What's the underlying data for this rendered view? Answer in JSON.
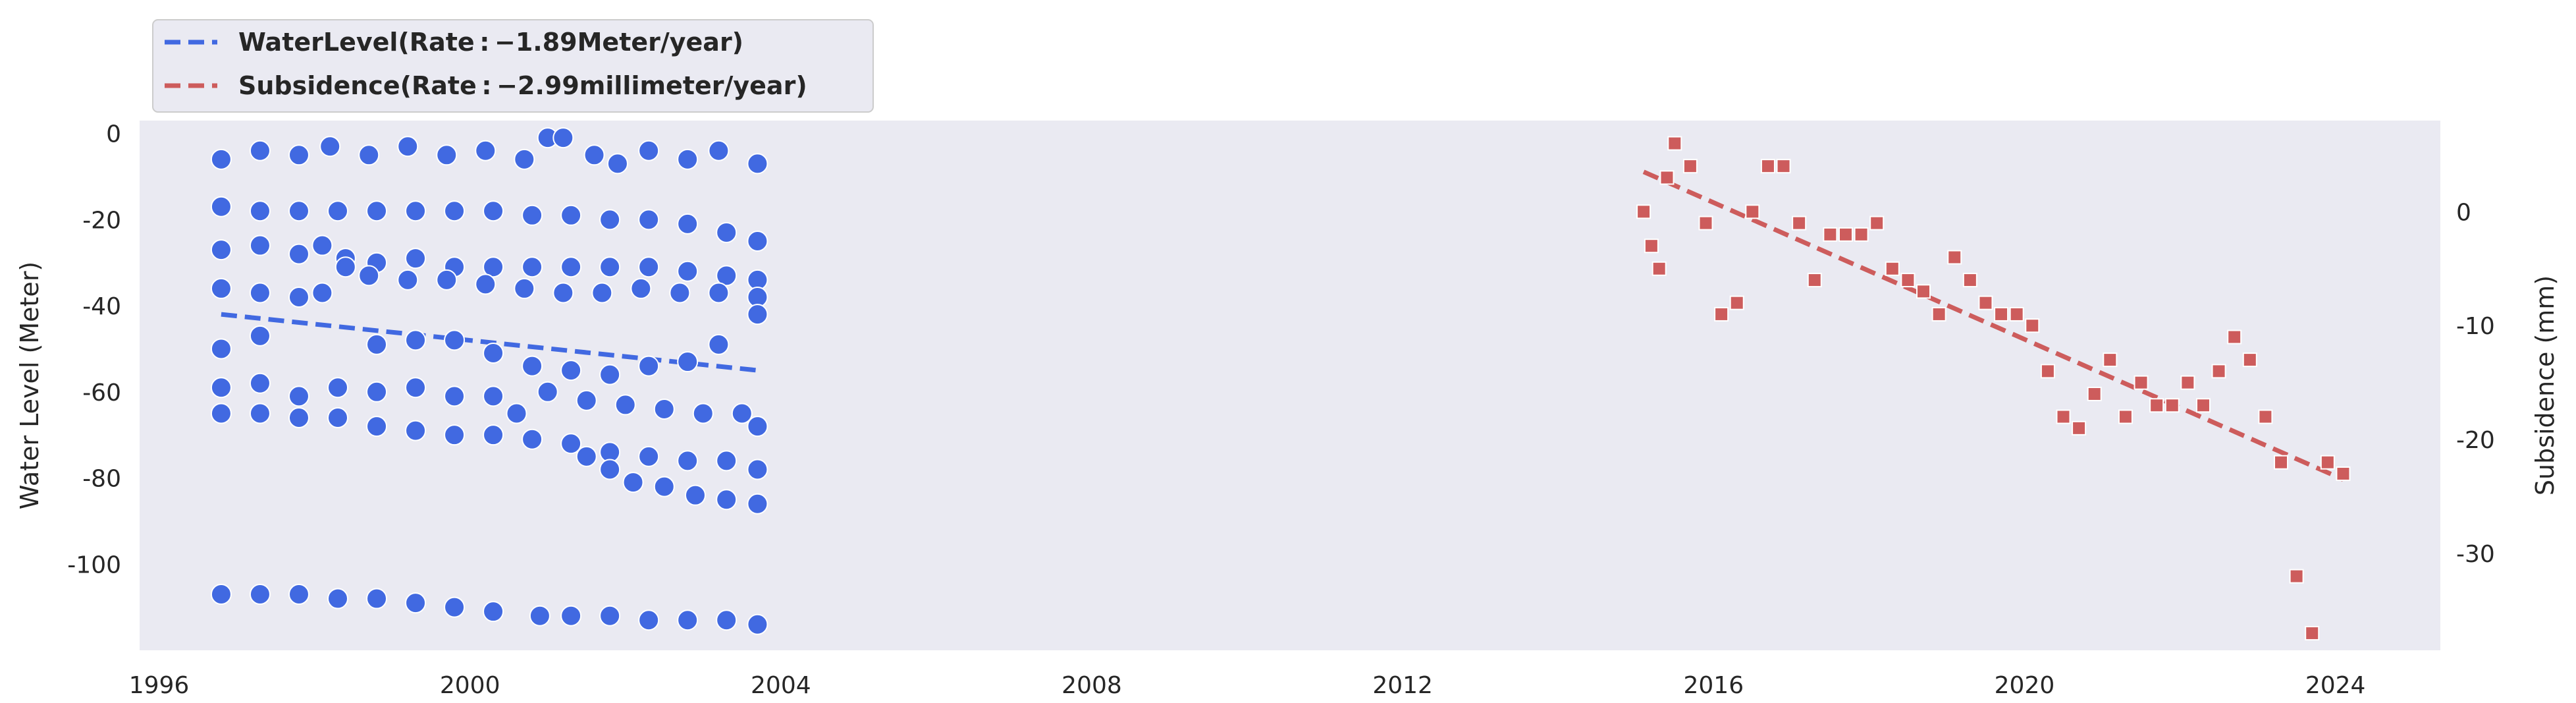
{
  "chart_data": {
    "type": "scatter",
    "title": "",
    "xlabel": "",
    "ylabel_left": "Water Level (Meter)",
    "ylabel_right": "Subsidence (mm)",
    "xlim": [
      1995.75,
      2025.35
    ],
    "ylim_left": [
      -120,
      3
    ],
    "ylim_right": [
      -38.5,
      8
    ],
    "x_ticks": [
      1996,
      2000,
      2004,
      2008,
      2012,
      2016,
      2020,
      2024
    ],
    "x_tick_labels": [
      "1996",
      "2000",
      "2004",
      "2008",
      "2012",
      "2016",
      "2020",
      "2024"
    ],
    "y_left_ticks": [
      0,
      -20,
      -40,
      -60,
      -80,
      -100
    ],
    "y_left_tick_labels": [
      "0",
      "-20",
      "-40",
      "-60",
      "-80",
      "-100"
    ],
    "y_right_ticks": [
      0,
      -10,
      -20,
      -30
    ],
    "y_right_tick_labels": [
      "0",
      "-10",
      "-20",
      "-30"
    ],
    "grid": false,
    "background": "#eaeaf2",
    "legend": {
      "placement": "top-left, outside plot",
      "entries": [
        {
          "label": "WaterLevel(Rate : −1.89Meter/year)",
          "color": "#4169e1",
          "style": "dashed"
        },
        {
          "label": "Subsidence(Rate : −2.99millimeter/year)",
          "color": "#cd5c5c",
          "style": "dashed"
        }
      ]
    },
    "series": [
      {
        "name": "WaterLevel",
        "axis": "left",
        "marker": "circle",
        "color": "#4169e1",
        "wells": [
          {
            "x": [
              1996.8,
              1997.3,
              1997.8,
              1998.2,
              1998.7,
              1999.2,
              1999.7,
              2000.2,
              2000.7,
              2001.0,
              2001.2,
              2001.6,
              2001.9,
              2002.3,
              2002.8,
              2003.2,
              2003.7
            ],
            "y": [
              -6,
              -4,
              -5,
              -3,
              -5,
              -3,
              -5,
              -4,
              -6,
              -1,
              -1,
              -5,
              -7,
              -4,
              -6,
              -4,
              -7
            ]
          },
          {
            "x": [
              1996.8,
              1997.3,
              1997.8,
              1998.3,
              1998.8,
              1999.3,
              1999.8,
              2000.3,
              2000.8,
              2001.3,
              2001.8,
              2002.3,
              2002.8,
              2003.3,
              2003.7
            ],
            "y": [
              -17,
              -18,
              -18,
              -18,
              -18,
              -18,
              -18,
              -18,
              -19,
              -19,
              -20,
              -20,
              -21,
              -23,
              -25
            ]
          },
          {
            "x": [
              1996.8,
              1997.3,
              1997.8,
              1998.1,
              1998.4,
              1998.8,
              1999.3,
              1999.8,
              2000.3,
              2000.8,
              2001.3,
              2001.8,
              2002.3,
              2002.8,
              2003.3,
              2003.7
            ],
            "y": [
              -27,
              -26,
              -28,
              -26,
              -29,
              -30,
              -29,
              -31,
              -31,
              -31,
              -31,
              -31,
              -31,
              -32,
              -33,
              -34
            ]
          },
          {
            "x": [
              1996.8,
              1997.3,
              1997.8,
              1998.1,
              1998.4,
              1998.7,
              1999.2,
              1999.7,
              2000.2,
              2000.7,
              2001.2,
              2001.7,
              2002.2,
              2002.7,
              2003.2,
              2003.7
            ],
            "y": [
              -36,
              -37,
              -38,
              -37,
              -31,
              -33,
              -34,
              -34,
              -35,
              -36,
              -37,
              -37,
              -36,
              -37,
              -37,
              -38
            ]
          },
          {
            "x": [
              1996.8,
              1997.3,
              1998.8,
              1999.3,
              1999.8,
              2000.3,
              2000.8,
              2001.3,
              2001.8,
              2002.3,
              2002.8,
              2003.2,
              2003.7
            ],
            "y": [
              -50,
              -47,
              -49,
              -48,
              -48,
              -51,
              -54,
              -55,
              -56,
              -54,
              -53,
              -49,
              -42
            ]
          },
          {
            "x": [
              1996.8,
              1997.3,
              1997.8,
              1998.3,
              1998.8,
              1999.3,
              1999.8,
              2000.3,
              2000.6,
              2001.0,
              2001.5,
              2002.0,
              2002.5,
              2003.0,
              2003.5,
              2003.7
            ],
            "y": [
              -59,
              -58,
              -61,
              -59,
              -60,
              -59,
              -61,
              -61,
              -65,
              -60,
              -62,
              -63,
              -64,
              -65,
              -65,
              -68
            ]
          },
          {
            "x": [
              1996.8,
              1997.3,
              1997.8,
              1998.3,
              1998.8,
              1999.3,
              1999.8,
              2000.3,
              2000.8,
              2001.3,
              2001.8,
              2002.3,
              2002.8,
              2003.3,
              2003.7
            ],
            "y": [
              -65,
              -65,
              -66,
              -66,
              -68,
              -69,
              -70,
              -70,
              -71,
              -72,
              -74,
              -75,
              -76,
              -76,
              -78
            ]
          },
          {
            "x": [
              2001.5,
              2001.8,
              2002.1,
              2002.5,
              2002.9,
              2003.3,
              2003.7
            ],
            "y": [
              -75,
              -78,
              -81,
              -82,
              -84,
              -85,
              -86
            ]
          },
          {
            "x": [
              1996.8,
              1997.3,
              1997.8,
              1998.3,
              1998.8,
              1999.3,
              1999.8,
              2000.3,
              2000.9,
              2001.3,
              2001.8,
              2002.3,
              2002.8,
              2003.3,
              2003.7
            ],
            "y": [
              -107,
              -107,
              -107,
              -108,
              -108,
              -109,
              -110,
              -111,
              -112,
              -112,
              -112,
              -113,
              -113,
              -113,
              -114
            ]
          }
        ],
        "trend": {
          "x": [
            1996.8,
            2003.7
          ],
          "y": [
            -42,
            -55
          ]
        }
      },
      {
        "name": "Subsidence",
        "axis": "right",
        "marker": "square",
        "color": "#cd5c5c",
        "x": [
          2015.1,
          2015.2,
          2015.3,
          2015.4,
          2015.5,
          2015.7,
          2015.9,
          2016.1,
          2016.3,
          2016.5,
          2016.7,
          2016.9,
          2017.1,
          2017.3,
          2017.5,
          2017.7,
          2017.9,
          2018.1,
          2018.3,
          2018.5,
          2018.7,
          2018.9,
          2019.1,
          2019.3,
          2019.5,
          2019.7,
          2019.9,
          2020.1,
          2020.3,
          2020.5,
          2020.7,
          2020.9,
          2021.1,
          2021.3,
          2021.5,
          2021.7,
          2021.9,
          2022.1,
          2022.3,
          2022.5,
          2022.7,
          2022.9,
          2023.1,
          2023.3,
          2023.5,
          2023.7,
          2023.9,
          2024.1
        ],
        "y": [
          0,
          -3,
          -5,
          3,
          6,
          4,
          -1,
          -9,
          -8,
          0,
          4,
          4,
          -1,
          -6,
          -2,
          -2,
          -2,
          -1,
          -5,
          -6,
          -7,
          -9,
          -4,
          -6,
          -8,
          -9,
          -9,
          -10,
          -14,
          -18,
          -19,
          -16,
          -13,
          -18,
          -15,
          -17,
          -17,
          -15,
          -17,
          -14,
          -11,
          -13,
          -18,
          -22,
          -32,
          -37,
          -22,
          -23
        ]
      }
    ],
    "subsidence_trend": {
      "x": [
        2015.1,
        2024.1
      ],
      "y": [
        3.5,
        -23.5
      ]
    }
  }
}
